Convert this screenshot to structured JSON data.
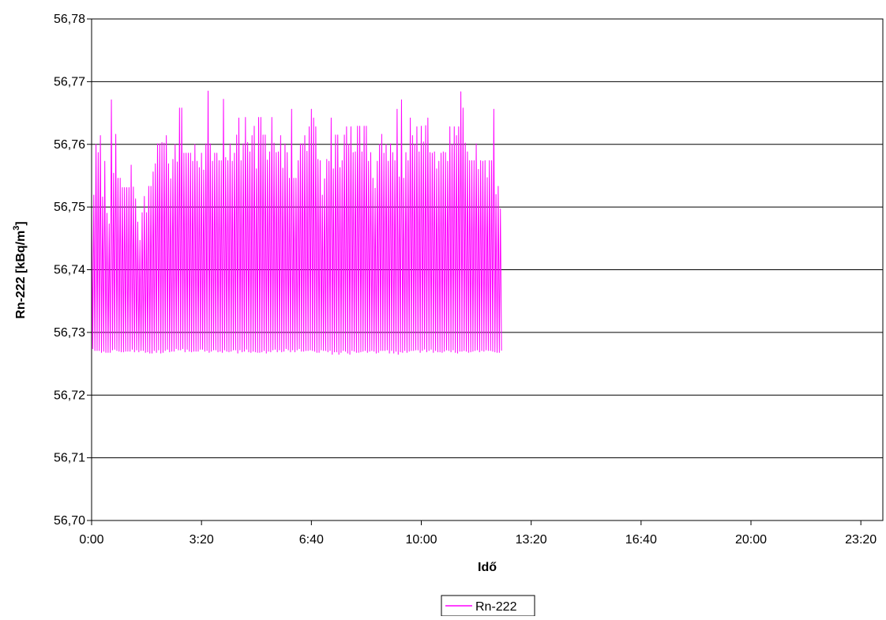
{
  "chart_data": {
    "type": "line",
    "title": "",
    "xlabel": "Idő",
    "ylabel": {
      "prefix": "Rn-222 [kBq/m",
      "superscript": "3",
      "suffix": "]"
    },
    "ylim": [
      56.7,
      56.78
    ],
    "y_ticks": [
      56.7,
      56.71,
      56.72,
      56.73,
      56.74,
      56.75,
      56.76,
      56.77,
      56.78
    ],
    "y_tick_labels": [
      "56,70",
      "56,71",
      "56,72",
      "56,73",
      "56,74",
      "56,75",
      "56,76",
      "56,77",
      "56,78"
    ],
    "x_unit": "minutes since 0:00",
    "xlim_minutes": [
      0,
      1440
    ],
    "x_ticks_minutes": [
      0,
      200,
      400,
      600,
      800,
      1000,
      1200,
      1400
    ],
    "x_tick_labels": [
      "0:00",
      "3:20",
      "6:40",
      "10:00",
      "13:20",
      "16:40",
      "20:00",
      "23:20"
    ],
    "grid": "horizontal",
    "legend": {
      "position": "bottom-center",
      "entries": [
        "Rn-222"
      ]
    },
    "series": [
      {
        "name": "Rn-222",
        "color": "#ff00ff",
        "sampling_interval_minutes": 2,
        "values": [
          56.7509,
          56.7274,
          56.7519,
          56.7271,
          56.76,
          56.7271,
          56.7587,
          56.7271,
          56.7614,
          56.7268,
          56.7516,
          56.727,
          56.7573,
          56.7268,
          56.749,
          56.7268,
          56.7473,
          56.7268,
          56.7671,
          56.7272,
          56.7554,
          56.7273,
          56.7616,
          56.7271,
          56.7546,
          56.727,
          56.7546,
          56.7269,
          56.7531,
          56.7269,
          56.7531,
          56.727,
          56.7531,
          56.727,
          56.7531,
          56.727,
          56.7567,
          56.7273,
          56.7532,
          56.7269,
          56.7513,
          56.7272,
          56.7476,
          56.7269,
          56.7447,
          56.7271,
          56.7491,
          56.7271,
          56.7517,
          56.7268,
          56.7491,
          56.7269,
          56.7533,
          56.7267,
          56.7533,
          56.7267,
          56.7556,
          56.7271,
          56.7569,
          56.7268,
          56.7601,
          56.7272,
          56.7601,
          56.7267,
          56.7603,
          56.7268,
          56.7602,
          56.7271,
          56.7614,
          56.7273,
          56.7569,
          56.7269,
          56.7545,
          56.727,
          56.7576,
          56.727,
          56.76,
          56.7274,
          56.7572,
          56.7272,
          56.7658,
          56.7272,
          56.7658,
          56.7274,
          56.7586,
          56.7269,
          56.7586,
          56.7273,
          56.7586,
          56.727,
          56.7586,
          56.7269,
          56.7573,
          56.727,
          56.76,
          56.727,
          56.7573,
          56.727,
          56.7563,
          56.7273,
          56.7586,
          56.7273,
          56.7559,
          56.727,
          56.7601,
          56.7271,
          56.7685,
          56.7268,
          56.7601,
          56.727,
          56.7573,
          56.7272,
          56.7586,
          56.7272,
          56.7586,
          56.7269,
          56.7574,
          56.727,
          56.7574,
          56.7268,
          56.7672,
          56.7272,
          56.7579,
          56.727,
          56.7574,
          56.7269,
          56.7601,
          56.727,
          56.7573,
          56.7272,
          56.7586,
          56.7272,
          56.7615,
          56.7267,
          56.7642,
          56.7272,
          56.7574,
          56.7269,
          56.7601,
          56.727,
          56.7643,
          56.7273,
          56.7603,
          56.7269,
          56.7588,
          56.7268,
          56.7614,
          56.727,
          56.7629,
          56.7269,
          56.7561,
          56.7268,
          56.7643,
          56.7268,
          56.7643,
          56.7269,
          56.7615,
          56.7271,
          56.7615,
          56.7267,
          56.7575,
          56.727,
          56.7588,
          56.7269,
          56.7643,
          56.7272,
          56.7602,
          56.7273,
          56.7587,
          56.7269,
          56.7588,
          56.7272,
          56.7614,
          56.7269,
          56.7562,
          56.727,
          56.7601,
          56.7274,
          56.7587,
          56.7272,
          56.7546,
          56.7269,
          56.7656,
          56.7272,
          56.7546,
          56.7269,
          56.7546,
          56.7272,
          56.7574,
          56.7274,
          56.7601,
          56.727,
          56.7601,
          56.727,
          56.7614,
          56.7271,
          56.7589,
          56.7271,
          56.7628,
          56.7272,
          56.7656,
          56.7271,
          56.7642,
          56.727,
          56.7628,
          56.7268,
          56.7576,
          56.7268,
          56.7574,
          56.7272,
          56.7519,
          56.7271,
          56.7545,
          56.7271,
          56.7576,
          56.7269,
          56.7573,
          56.7271,
          56.7642,
          56.7265,
          56.7561,
          56.7269,
          56.7615,
          56.7269,
          56.7615,
          56.7265,
          56.7563,
          56.7268,
          56.7574,
          56.7271,
          56.7615,
          56.727,
          56.7628,
          56.7267,
          56.76,
          56.7265,
          56.7628,
          56.7271,
          56.7587,
          56.727,
          56.7588,
          56.7268,
          56.7629,
          56.7268,
          56.7629,
          56.7269,
          56.7588,
          56.727,
          56.7629,
          56.7271,
          56.7629,
          56.7268,
          56.7573,
          56.727,
          56.7587,
          56.7271,
          56.7546,
          56.727,
          56.753,
          56.7267,
          56.7573,
          56.7268,
          56.76,
          56.7271,
          56.7616,
          56.7271,
          56.7586,
          56.7271,
          56.76,
          56.7272,
          56.7573,
          56.7267,
          56.7601,
          56.7271,
          56.7587,
          56.7267,
          56.7574,
          56.727,
          56.7656,
          56.7265,
          56.7548,
          56.7269,
          56.7671,
          56.7268,
          56.7546,
          56.7271,
          56.7587,
          56.7268,
          56.7574,
          56.727,
          56.7642,
          56.7271,
          56.7614,
          56.7271,
          56.76,
          56.7272,
          56.7628,
          56.7272,
          56.7588,
          56.7268,
          56.7629,
          56.7271,
          56.7604,
          56.7273,
          56.763,
          56.7269,
          56.7642,
          56.7271,
          56.7587,
          56.7273,
          56.7586,
          56.7268,
          56.7588,
          56.7271,
          56.7561,
          56.7269,
          56.7573,
          56.7269,
          56.7586,
          56.7268,
          56.7588,
          56.727,
          56.7587,
          56.7272,
          56.7573,
          56.7271,
          56.7628,
          56.7269,
          56.76,
          56.7272,
          56.7628,
          56.7268,
          56.7614,
          56.7267,
          56.7628,
          56.727,
          56.7684,
          56.727,
          56.7658,
          56.7271,
          56.7602,
          56.727,
          56.7588,
          56.7268,
          56.7574,
          56.7269,
          56.7574,
          56.727,
          56.7574,
          56.7271,
          56.7601,
          56.7272,
          56.756,
          56.7269,
          56.7574,
          56.7271,
          56.7573,
          56.727,
          56.7574,
          56.7272,
          56.7547,
          56.7271,
          56.7574,
          56.7271,
          56.7574,
          56.727,
          56.7656,
          56.7269,
          56.752,
          56.7268,
          56.7533,
          56.7268,
          56.7497,
          56.7271
        ]
      }
    ]
  }
}
